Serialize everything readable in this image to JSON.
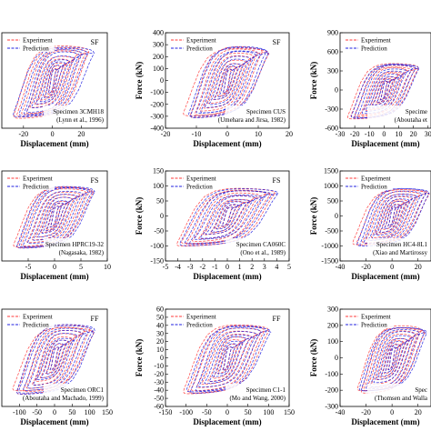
{
  "chart_data": [
    {
      "type": "line",
      "tag": "SF",
      "specimen": "Specimen 3CMH18",
      "citation": "(Lynn et al., 1996)",
      "xlabel": "Displacement (mm)",
      "ylabel": "",
      "xticks": [
        -20,
        0,
        20
      ],
      "yticks": [],
      "xlim": [
        -35,
        38
      ],
      "ylim": [
        -450,
        450
      ],
      "xamp": 28,
      "yamp": 380,
      "series": [
        {
          "name": "Experiment",
          "color": "#ff3b3b"
        },
        {
          "name": "Prediction",
          "color": "#2020e0"
        }
      ]
    },
    {
      "type": "line",
      "tag": "SF",
      "specimen": "Specimen CUS",
      "citation": "(Umehara and Jirsa, 1982)",
      "xlabel": "Displacement (mm)",
      "ylabel": "Force (kN)",
      "xticks": [
        -20,
        -10,
        0,
        10,
        20
      ],
      "yticks": [
        -400,
        -300,
        -200,
        -100,
        0,
        100,
        200,
        300,
        400
      ],
      "xlim": [
        -20,
        20
      ],
      "ylim": [
        -400,
        400
      ],
      "xamp": 14,
      "yamp": 330,
      "series": [
        {
          "name": "Experiment",
          "color": "#ff3b3b"
        },
        {
          "name": "Prediction",
          "color": "#2020e0"
        }
      ]
    },
    {
      "type": "line",
      "tag": "",
      "specimen": "Specime",
      "citation": "(Aboutaha et",
      "xlabel": "Displacement (mm)",
      "ylabel": "Force (kN)",
      "xticks": [
        -30,
        -20,
        -10,
        0,
        10,
        20,
        30
      ],
      "yticks": [
        -600,
        -300,
        0,
        300,
        600,
        900
      ],
      "xlim": [
        -30,
        32
      ],
      "ylim": [
        -600,
        900
      ],
      "xamp": 25,
      "yamp": 480,
      "series": [
        {
          "name": "Experiment",
          "color": "#ff3b3b"
        },
        {
          "name": "Prediction",
          "color": "#2020e0"
        }
      ]
    },
    {
      "type": "line",
      "tag": "FS",
      "specimen": "Specimen HPRC19-32",
      "citation": "(Nagasaka, 1982)",
      "xlabel": "Displacement (mm)",
      "ylabel": "",
      "xticks": [
        -5,
        0,
        5,
        10
      ],
      "yticks": [],
      "xlim": [
        -10,
        10
      ],
      "ylim": [
        -300,
        300
      ],
      "xamp": 8,
      "yamp": 230,
      "series": [
        {
          "name": "Experiment",
          "color": "#ff3b3b"
        },
        {
          "name": "Prediction",
          "color": "#2020e0"
        }
      ]
    },
    {
      "type": "line",
      "tag": "FS",
      "specimen": "Specimen CA060C",
      "citation": "(Ono et al., 1989)",
      "xlabel": "Displacement (mm)",
      "ylabel": "Force (kN)",
      "xticks": [
        -5,
        -4,
        -3,
        -2,
        -1,
        0,
        1,
        2,
        3,
        4,
        5
      ],
      "yticks": [
        -150,
        -100,
        -50,
        0,
        50,
        100,
        150
      ],
      "xlim": [
        -5,
        5
      ],
      "ylim": [
        -150,
        150
      ],
      "xamp": 4.3,
      "yamp": 105,
      "series": [
        {
          "name": "Experiment",
          "color": "#ff3b3b"
        },
        {
          "name": "Prediction",
          "color": "#2020e0"
        }
      ]
    },
    {
      "type": "line",
      "tag": "",
      "specimen": "Specimen HC4-8L1",
      "citation": "(Xiao and Martirossy",
      "xlabel": "Displacement (mm)",
      "ylabel": "Force (kN)",
      "xticks": [
        -40,
        -20,
        0,
        20
      ],
      "yticks": [
        -1500,
        -1000,
        -500,
        0,
        500,
        1000,
        1500
      ],
      "xlim": [
        -40,
        30
      ],
      "ylim": [
        -1500,
        1500
      ],
      "xamp": 30,
      "yamp": 1050,
      "series": [
        {
          "name": "Experiment",
          "color": "#ff3b3b"
        },
        {
          "name": "Prediction",
          "color": "#2020e0"
        }
      ]
    },
    {
      "type": "line",
      "tag": "FF",
      "specimen": "Specimen ORC1",
      "citation": "(Aboutaha and Machado, 1999)",
      "xlabel": "Displacement (mm)",
      "ylabel": "",
      "xticks": [
        -100,
        -50,
        0,
        50,
        100,
        150
      ],
      "yticks": [],
      "xlim": [
        -150,
        150
      ],
      "ylim": [
        -450,
        450
      ],
      "xamp": 120,
      "yamp": 350,
      "series": [
        {
          "name": "Experiment",
          "color": "#ff3b3b"
        },
        {
          "name": "Prediction",
          "color": "#2020e0"
        }
      ]
    },
    {
      "type": "line",
      "tag": "FF",
      "specimen": "Specimen C1-1",
      "citation": "(Mo and Wang, 2000)",
      "xlabel": "Displacement (mm)",
      "ylabel": "Force (kN)",
      "xticks": [
        -150,
        -100,
        -50,
        0,
        50,
        100,
        150
      ],
      "yticks": [
        -60,
        -50,
        -40,
        -30,
        -20,
        -10,
        0,
        10,
        20,
        30,
        40,
        50,
        60
      ],
      "xlim": [
        -150,
        150
      ],
      "ylim": [
        -60,
        60
      ],
      "xamp": 110,
      "yamp": 48,
      "series": [
        {
          "name": "Experiment",
          "color": "#ff3b3b"
        },
        {
          "name": "Prediction",
          "color": "#2020e0"
        }
      ]
    },
    {
      "type": "line",
      "tag": "",
      "specimen": "Spec",
      "citation": "(Thomsen and Walla",
      "xlabel": "Displacement (mm)",
      "ylabel": "Force (kN)",
      "xticks": [
        -40,
        -20,
        0,
        20
      ],
      "yticks": [
        -300,
        -200,
        -100,
        0,
        100,
        200,
        300
      ],
      "xlim": [
        -40,
        30
      ],
      "ylim": [
        -300,
        300
      ],
      "xamp": 28,
      "yamp": 230,
      "series": [
        {
          "name": "Experiment",
          "color": "#ff3b3b"
        },
        {
          "name": "Prediction",
          "color": "#2020e0"
        }
      ]
    }
  ]
}
